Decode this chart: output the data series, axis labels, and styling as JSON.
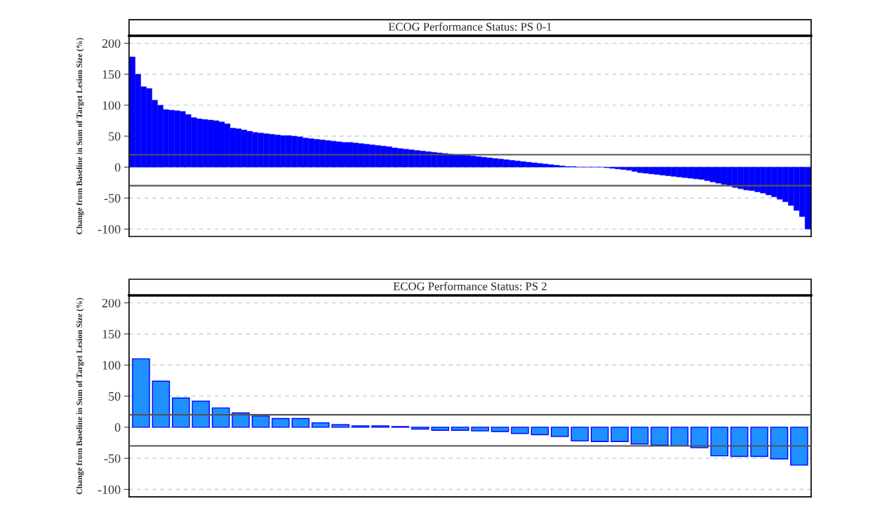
{
  "chart_data": [
    {
      "type": "bar",
      "title": "ECOG Performance Status: PS 0-1",
      "ylabel": "Change from Baseline in Sum of Target Lesion Size (%)",
      "categories": [
        null,
        null,
        null,
        null,
        null,
        null,
        null,
        null,
        null,
        null,
        null,
        null,
        null,
        null,
        null,
        null,
        null,
        null,
        null,
        null,
        null,
        null,
        null,
        null,
        null,
        null,
        null,
        null,
        null,
        null,
        null,
        null,
        null,
        null,
        null,
        null,
        null,
        null,
        null,
        null,
        null,
        null,
        null,
        null,
        null,
        null,
        null,
        null,
        null,
        null,
        null,
        null,
        null,
        null,
        null,
        null,
        null,
        null,
        null,
        null,
        null,
        null,
        null,
        null,
        null,
        null,
        null,
        null,
        null,
        null,
        null,
        null,
        null,
        null,
        null,
        null,
        null,
        null,
        null,
        null,
        null,
        null,
        null,
        null,
        null,
        null,
        null,
        null,
        null,
        null,
        null,
        null,
        null,
        null,
        null,
        null,
        null,
        null,
        null,
        null,
        null,
        null,
        null,
        null,
        null,
        null,
        null,
        null,
        null,
        null,
        null,
        null,
        null,
        null,
        null,
        null,
        null,
        null,
        null,
        null,
        null,
        null
      ],
      "values": [
        178,
        150,
        130,
        127,
        108,
        100,
        93,
        92,
        91,
        90,
        85,
        80,
        78,
        77,
        76,
        75,
        73,
        70,
        63,
        62,
        60,
        58,
        56,
        55,
        54,
        53,
        52,
        51,
        51,
        50,
        49,
        47,
        46,
        45,
        44,
        43,
        42,
        41,
        40,
        40,
        39,
        38,
        37,
        36,
        35,
        34,
        33,
        31,
        30,
        29,
        28,
        27,
        26,
        25,
        24,
        23,
        22,
        21,
        20,
        20,
        19,
        18,
        17,
        16,
        15,
        14,
        13,
        12,
        11,
        10,
        9,
        8,
        7,
        6,
        5,
        4,
        3,
        2,
        1,
        1,
        0,
        0,
        0,
        0,
        0,
        -1,
        -2,
        -3,
        -4,
        -5,
        -7,
        -9,
        -10,
        -11,
        -12,
        -13,
        -14,
        -15,
        -16,
        -17,
        -18,
        -19,
        -20,
        -22,
        -24,
        -26,
        -28,
        -30,
        -33,
        -35,
        -37,
        -38,
        -40,
        -42,
        -45,
        -48,
        -52,
        -56,
        -62,
        -70,
        -80,
        -100
      ],
      "color": "#0000ff",
      "ylim": [
        -112,
        212
      ],
      "yticks": [
        -100,
        -50,
        0,
        50,
        100,
        150,
        200
      ],
      "grid": "y",
      "tick_labels": "y",
      "ref_lines": [
        {
          "axis": "y",
          "value": 20,
          "color": "#555555"
        },
        {
          "axis": "y",
          "value": -30,
          "color": "#555555"
        }
      ]
    },
    {
      "type": "bar",
      "title": "ECOG Performance Status: PS 2",
      "ylabel": "Change from Baseline in Sum of Target Lesion Size (%)",
      "categories": [
        null,
        null,
        null,
        null,
        null,
        null,
        null,
        null,
        null,
        null,
        null,
        null,
        null,
        null,
        null,
        null,
        null,
        null,
        null,
        null,
        null,
        null,
        null,
        null,
        null,
        null,
        null,
        null,
        null,
        null,
        null,
        null,
        null,
        null
      ],
      "values": [
        110,
        74,
        47,
        42,
        31,
        23,
        18,
        14,
        14,
        7,
        4,
        2,
        2,
        1,
        -3,
        -5,
        -5,
        -6,
        -7,
        -10,
        -12,
        -15,
        -22,
        -23,
        -23,
        -27,
        -29,
        -30,
        -33,
        -46,
        -47,
        -47,
        -51,
        -61
      ],
      "color": "#1e90ff",
      "ylim": [
        -112,
        212
      ],
      "yticks": [
        -100,
        -50,
        0,
        50,
        100,
        150,
        200
      ],
      "grid": "y",
      "tick_labels": "y",
      "ref_lines": [
        {
          "axis": "y",
          "value": 20,
          "color": "#555555"
        },
        {
          "axis": "y",
          "value": -30,
          "color": "#555555"
        }
      ]
    }
  ]
}
